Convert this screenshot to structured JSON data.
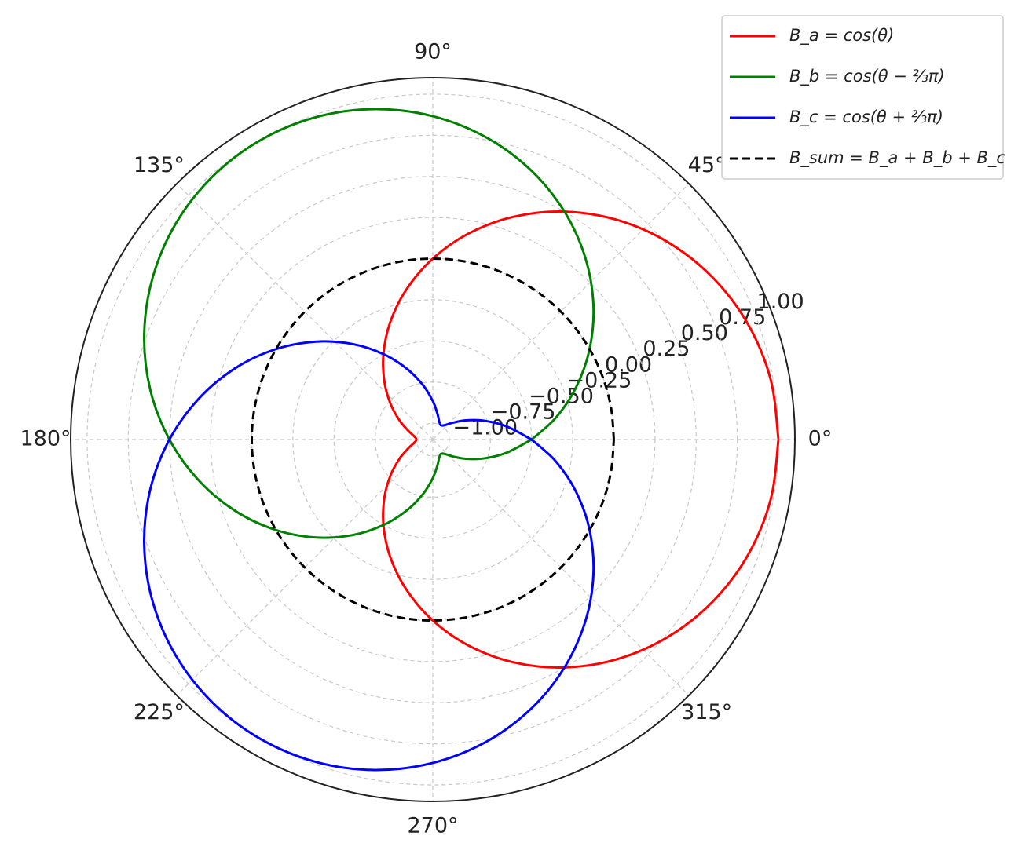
{
  "chart_data": {
    "type": "polar",
    "theta": [
      0,
      10,
      20,
      30,
      40,
      50,
      60,
      70,
      80,
      90,
      100,
      110,
      120,
      130,
      140,
      150,
      160,
      170,
      180,
      190,
      200,
      210,
      220,
      230,
      240,
      250,
      260,
      270,
      280,
      290,
      300,
      310,
      320,
      330,
      340,
      350,
      360
    ],
    "series": [
      {
        "name": "B_a = cos(θ)",
        "color": "#ff0000",
        "dash": false,
        "values": [
          1,
          0.985,
          0.94,
          0.866,
          0.766,
          0.643,
          0.5,
          0.342,
          0.174,
          0,
          -0.174,
          -0.342,
          -0.5,
          -0.643,
          -0.766,
          -0.866,
          -0.94,
          -0.985,
          -1,
          -0.985,
          -0.94,
          -0.866,
          -0.766,
          -0.643,
          -0.5,
          -0.342,
          -0.174,
          0,
          0.174,
          0.342,
          0.5,
          0.643,
          0.766,
          0.866,
          0.94,
          0.985,
          1
        ]
      },
      {
        "name": "B_b = cos(θ − ⅔π)",
        "color": "#008000",
        "dash": false,
        "values": [
          -0.5,
          -0.342,
          -0.174,
          0,
          0.174,
          0.342,
          0.5,
          0.643,
          0.766,
          0.866,
          0.94,
          0.985,
          1,
          0.985,
          0.94,
          0.866,
          0.766,
          0.643,
          0.5,
          0.342,
          0.174,
          0,
          -0.174,
          -0.342,
          -0.5,
          -0.643,
          -0.766,
          -0.866,
          -0.94,
          -0.985,
          -1,
          -0.985,
          -0.94,
          -0.866,
          -0.766,
          -0.643,
          -0.5
        ]
      },
      {
        "name": "B_c = cos(θ + ⅔π)",
        "color": "#0000ff",
        "dash": false,
        "values": [
          -0.5,
          -0.643,
          -0.766,
          -0.866,
          -0.94,
          -0.985,
          -1,
          -0.985,
          -0.94,
          -0.866,
          -0.766,
          -0.643,
          -0.5,
          -0.342,
          -0.174,
          0,
          0.174,
          0.342,
          0.5,
          0.643,
          0.766,
          0.866,
          0.94,
          0.985,
          1,
          0.985,
          0.94,
          0.866,
          0.766,
          0.643,
          0.5,
          0.342,
          0.174,
          0,
          -0.174,
          -0.342,
          -0.5
        ]
      },
      {
        "name": "B_sum = B_a + B_b + B_c",
        "color": "#000000",
        "dash": true,
        "values": [
          0,
          0,
          0,
          0,
          0,
          0,
          0,
          0,
          0,
          0,
          0,
          0,
          0,
          0,
          0,
          0,
          0,
          0,
          0,
          0,
          0,
          0,
          0,
          0,
          0,
          0,
          0,
          0,
          0,
          0,
          0,
          0,
          0,
          0,
          0,
          0,
          0
        ]
      }
    ],
    "rlim": [
      -1.1,
      1.1
    ],
    "rticks": [
      {
        "value": -1,
        "label": "−1.00"
      },
      {
        "value": -0.75,
        "label": "−0.75"
      },
      {
        "value": -0.5,
        "label": "−0.50"
      },
      {
        "value": -0.25,
        "label": "−0.25"
      },
      {
        "value": 0,
        "label": "0.00"
      },
      {
        "value": 0.25,
        "label": "0.25"
      },
      {
        "value": 0.5,
        "label": "0.50"
      },
      {
        "value": 0.75,
        "label": "0.75"
      },
      {
        "value": 1,
        "label": "1.00"
      }
    ],
    "thetaticks": [
      {
        "value": 0,
        "label": "0°"
      },
      {
        "value": 45,
        "label": "45°"
      },
      {
        "value": 90,
        "label": "90°"
      },
      {
        "value": 135,
        "label": "135°"
      },
      {
        "value": 180,
        "label": "180°"
      },
      {
        "value": 225,
        "label": "225°"
      },
      {
        "value": 270,
        "label": "270°"
      },
      {
        "value": 315,
        "label": "315°"
      }
    ],
    "grid": true,
    "legend": "upper right"
  }
}
